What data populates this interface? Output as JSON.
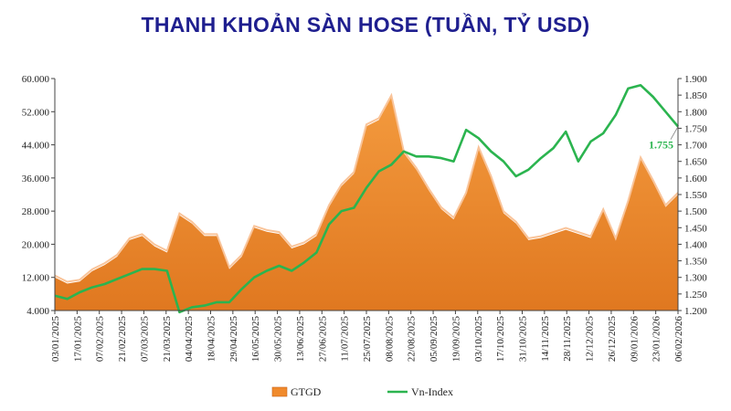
{
  "title": "THANH KHOẢN SÀN HOSE (TUẦN, TỶ USD)",
  "colors": {
    "area": "#f08a2c",
    "areaDark": "#c8641a",
    "line": "#2bb44f",
    "title": "#1f1f8f"
  },
  "chart_data": {
    "type": "area",
    "title": "THANH KHOẢN SÀN HOSE (TUẦN, TỶ USD)",
    "x_tick_labels": [
      "03/01/2025",
      "17/01/2025",
      "07/02/2025",
      "21/02/2025",
      "07/03/2025",
      "21/03/2025",
      "04/04/2025",
      "18/04/2025",
      "29/04/2025",
      "16/05/2025",
      "30/05/2025",
      "13/06/2025",
      "27/06/2025",
      "11/07/2025",
      "25/07/2025",
      "08/08/2025",
      "22/08/2025",
      "05/09/2025",
      "19/09/2025",
      "03/10/2025",
      "17/10/2025",
      "31/10/2025",
      "14/11/2025",
      "28/11/2025",
      "12/12/2025",
      "26/12/2025",
      "09/01/2026",
      "23/01/2026",
      "06/02/2026"
    ],
    "y_left": {
      "min": 4000,
      "max": 60000,
      "ticks": [
        "4.000",
        "12.000",
        "20.000",
        "28.000",
        "36.000",
        "44.000",
        "52.000",
        "60.000"
      ]
    },
    "y_right": {
      "min": 1200,
      "max": 1900,
      "ticks": [
        "1.200",
        "1.250",
        "1.300",
        "1.350",
        "1.400",
        "1.450",
        "1.500",
        "1.550",
        "1.600",
        "1.650",
        "1.700",
        "1.750",
        "1.800",
        "1.850",
        "1.900"
      ]
    },
    "series": [
      {
        "name": "GTGD",
        "kind": "area",
        "axis": "left",
        "x": [
          0,
          1,
          2,
          3,
          4,
          5,
          6,
          7,
          8,
          9,
          10,
          11,
          12,
          13,
          14,
          15,
          16,
          17,
          18,
          19,
          20,
          21,
          22,
          23,
          24,
          25,
          26,
          27,
          28,
          29,
          30,
          31,
          32,
          33,
          34,
          35,
          36,
          37,
          38,
          39,
          40,
          41,
          42,
          43,
          44,
          45,
          46,
          47,
          48,
          49,
          50,
          51,
          52,
          53,
          54,
          55,
          56
        ],
        "values": [
          12000,
          10500,
          11000,
          13500,
          15000,
          17000,
          21000,
          22000,
          19500,
          18000,
          27000,
          25000,
          22000,
          22000,
          14000,
          17000,
          24000,
          23000,
          22500,
          19000,
          20000,
          22000,
          29000,
          34000,
          37000,
          48500,
          50000,
          55500,
          42000,
          38000,
          33000,
          28500,
          26000,
          32000,
          43000,
          36000,
          27500,
          25000,
          21000,
          21500,
          22500,
          23500,
          22500,
          21500,
          28000,
          21000,
          30000,
          40500,
          35000,
          29000,
          32000,
          null,
          null,
          null,
          null,
          null,
          null
        ]
      },
      {
        "name": "Vn-Index",
        "kind": "line",
        "axis": "right",
        "x": [
          0,
          1,
          2,
          3,
          4,
          5,
          6,
          7,
          8,
          9,
          10,
          11,
          12,
          13,
          14,
          15,
          16,
          17,
          18,
          19,
          20,
          21,
          22,
          23,
          24,
          25,
          26,
          27,
          28,
          29,
          30,
          31,
          32,
          33,
          34,
          35,
          36,
          37,
          38,
          39,
          40,
          41,
          42,
          43,
          44,
          45,
          46,
          47,
          48,
          49,
          50
        ],
        "values": [
          1245,
          1235,
          1255,
          1270,
          1280,
          1295,
          1310,
          1325,
          1325,
          1320,
          1195,
          1210,
          1215,
          1225,
          1225,
          1265,
          1300,
          1320,
          1335,
          1320,
          1345,
          1375,
          1460,
          1500,
          1510,
          1570,
          1620,
          1640,
          1680,
          1665,
          1665,
          1660,
          1650,
          1745,
          1720,
          1680,
          1650,
          1605,
          1625,
          1660,
          1690,
          1740,
          1650,
          1710,
          1735,
          1790,
          1870,
          1880,
          1845,
          1800,
          1755
        ]
      }
    ],
    "annotations": [
      {
        "text": "1.755",
        "series": "Vn-Index"
      }
    ],
    "legend": {
      "position": "bottom",
      "items": [
        "GTGD",
        "Vn-Index"
      ]
    },
    "grid": false
  }
}
